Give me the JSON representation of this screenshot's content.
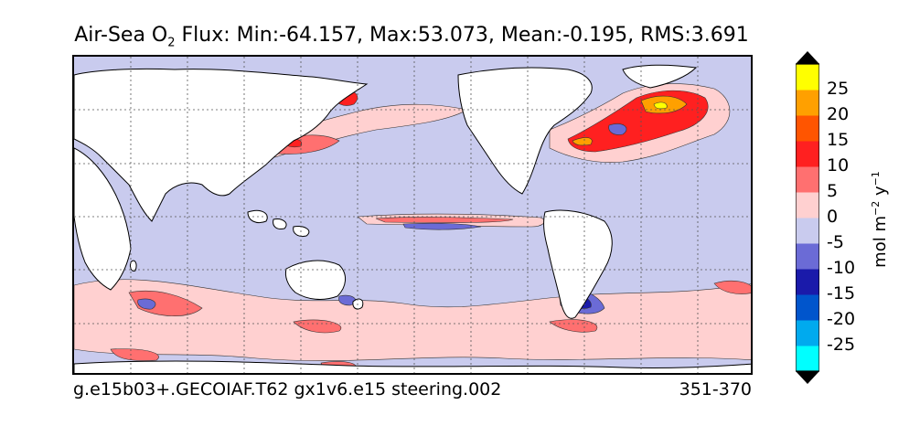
{
  "title": {
    "prefix": "Air-Sea O",
    "subscript": "2",
    "rest": " Flux: Min:-64.157, Max:53.073, Mean:-0.195, RMS:3.691"
  },
  "footer": {
    "left": "g.e15b03+.GECOIAF.T62 gx1v6.e15 steering.002",
    "right": "351-370"
  },
  "colorbar": {
    "unit_main": "mol m",
    "unit_exp1": "−2",
    "unit_mid": " y",
    "unit_exp2": "−1",
    "labels": [
      "25",
      "20",
      "15",
      "10",
      "5",
      "0",
      "-5",
      "-10",
      "-15",
      "-20",
      "-25"
    ],
    "colors": [
      "#00ffff",
      "#00aaee",
      "#0055cc",
      "#1a1aaa",
      "#6b6bd6",
      "#c9cbee",
      "#ffd0d0",
      "#ff7070",
      "#ff2020",
      "#ff5500",
      "#ffa000",
      "#ffff00"
    ],
    "extend_color": "#000000"
  },
  "map": {
    "land_color": "#ffffff",
    "ocean_background": "#c9cbee",
    "grid_color": "#555555"
  }
}
